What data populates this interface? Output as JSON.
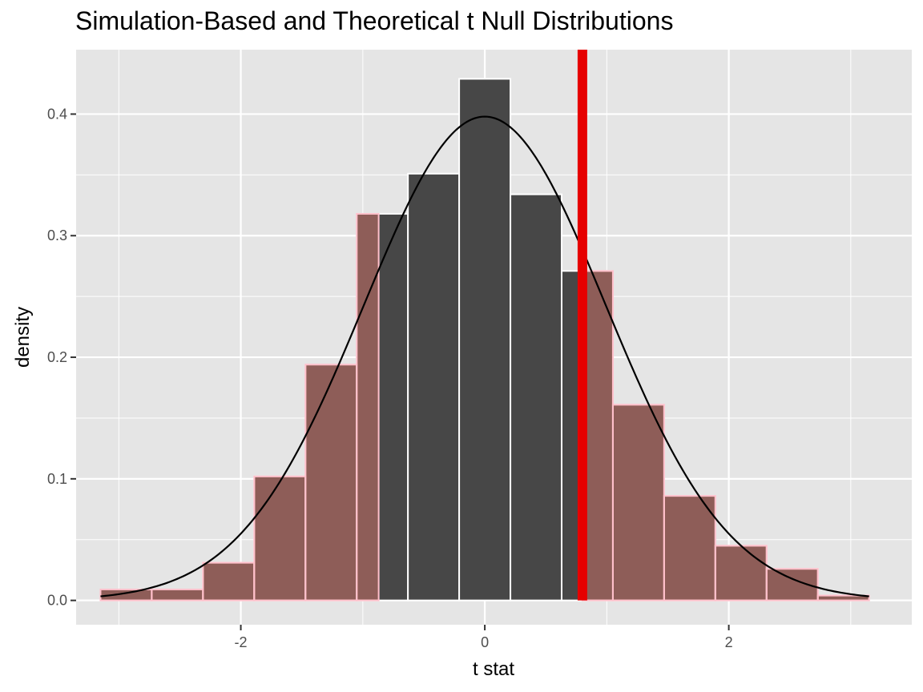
{
  "chart_data": {
    "type": "bar",
    "title": "Simulation-Based and Theoretical t Null Distributions",
    "xlabel": "t stat",
    "ylabel": "density",
    "xlim": [
      -3.35,
      3.5
    ],
    "ylim": [
      -0.02,
      0.453
    ],
    "x_ticks": [
      -2,
      0,
      2
    ],
    "x_tick_labels": [
      "-2",
      "0",
      "2"
    ],
    "y_ticks": [
      0.0,
      0.1,
      0.2,
      0.3,
      0.4
    ],
    "y_tick_labels": [
      "0.0",
      "0.1",
      "0.2",
      "0.3",
      "0.4"
    ],
    "grid": true,
    "bins": [
      {
        "x0": -3.15,
        "x1": -2.73,
        "density": 0.009,
        "shaded": true
      },
      {
        "x0": -2.73,
        "x1": -2.31,
        "density": 0.009,
        "shaded": true
      },
      {
        "x0": -2.31,
        "x1": -1.89,
        "density": 0.031,
        "shaded": true
      },
      {
        "x0": -1.89,
        "x1": -1.47,
        "density": 0.102,
        "shaded": true
      },
      {
        "x0": -1.47,
        "x1": -1.05,
        "density": 0.194,
        "shaded": true
      },
      {
        "x0": -1.05,
        "x1": -0.63,
        "density": 0.318,
        "shaded": false,
        "shade_to": -0.87
      },
      {
        "x0": -0.63,
        "x1": -0.21,
        "density": 0.351,
        "shaded": false
      },
      {
        "x0": -0.21,
        "x1": 0.21,
        "density": 0.429,
        "shaded": false
      },
      {
        "x0": 0.21,
        "x1": 0.63,
        "density": 0.334,
        "shaded": false
      },
      {
        "x0": 0.63,
        "x1": 1.05,
        "density": 0.271,
        "shaded": false,
        "shade_from": 0.8
      },
      {
        "x0": 1.05,
        "x1": 1.47,
        "density": 0.161,
        "shaded": true
      },
      {
        "x0": 1.47,
        "x1": 1.89,
        "density": 0.086,
        "shaded": true
      },
      {
        "x0": 1.89,
        "x1": 2.31,
        "density": 0.045,
        "shaded": true
      },
      {
        "x0": 2.31,
        "x1": 2.73,
        "density": 0.026,
        "shaded": true
      },
      {
        "x0": 2.73,
        "x1": 3.15,
        "density": 0.004,
        "shaded": true
      }
    ],
    "theoretical_curve": {
      "distribution": "t",
      "df": 100,
      "x_range": [
        -3.15,
        3.15
      ]
    },
    "observed_stat": 0.8,
    "shade_region": {
      "lower": -0.87,
      "upper": 0.8,
      "direction": "both"
    },
    "colors": {
      "panel_background": "#e5e5e5",
      "grid": "#ffffff",
      "bar_fill": "#474747",
      "bar_outline": "#ffffff",
      "shade_fill": "#fa8072",
      "shade_outline": "#ffc0cb",
      "observed_line": "#e60000",
      "curve": "#000000"
    }
  }
}
